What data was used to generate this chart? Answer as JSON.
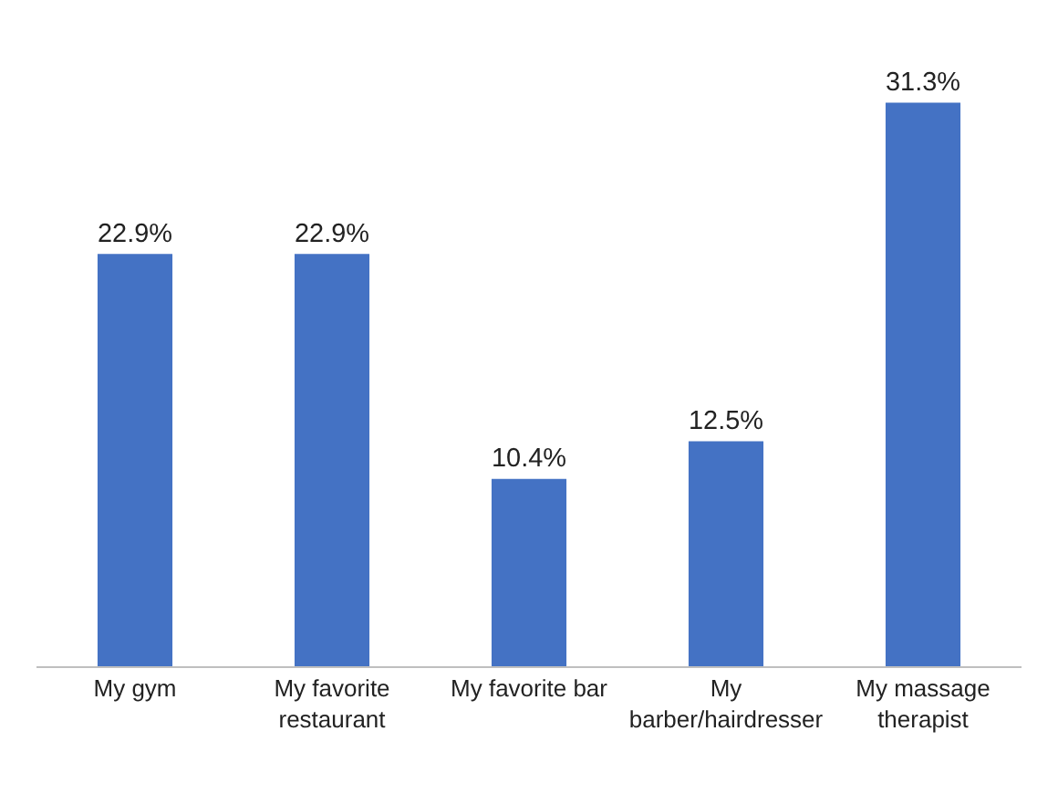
{
  "chart_data": {
    "type": "bar",
    "categories": [
      "My gym",
      "My favorite restaurant",
      "My favorite bar",
      "My barber/hairdresser",
      "My massage therapist"
    ],
    "values": [
      22.9,
      22.9,
      10.4,
      12.5,
      31.3
    ],
    "value_labels": [
      "22.9%",
      "22.9%",
      "10.4%",
      "12.5%",
      "31.3%"
    ],
    "color": "#4472c4",
    "tick_labels": "x"
  }
}
